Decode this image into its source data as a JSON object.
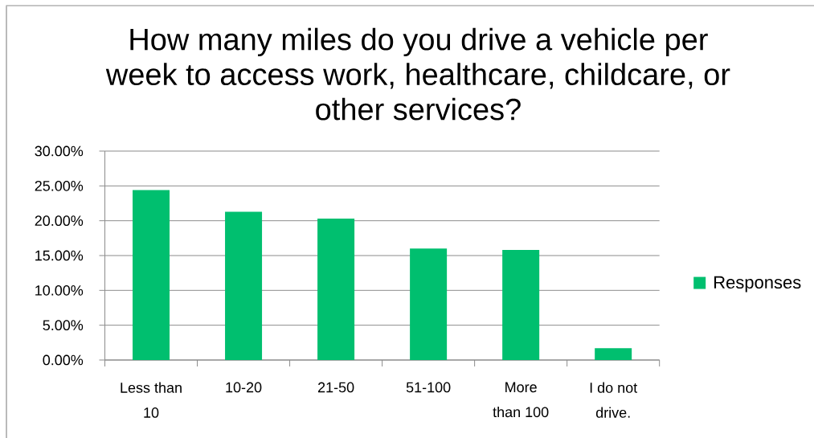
{
  "chart_data": {
    "type": "bar",
    "title": "How many miles do you drive a vehicle per week to access work, healthcare, childcare, or other services?",
    "categories": [
      "Less than 10",
      "10-20",
      "21-50",
      "51-100",
      "More than 100",
      "I do not drive."
    ],
    "series": [
      {
        "name": "Responses",
        "color": "#00bf6f",
        "values": [
          24.4,
          21.3,
          20.3,
          16.0,
          15.8,
          1.7
        ]
      }
    ],
    "ylim": [
      0,
      30
    ],
    "yticks": [
      {
        "value": 0,
        "label": "0.00%"
      },
      {
        "value": 5,
        "label": "5.00%"
      },
      {
        "value": 10,
        "label": "10.00%"
      },
      {
        "value": 15,
        "label": "15.00%"
      },
      {
        "value": 20,
        "label": "20.00%"
      },
      {
        "value": 25,
        "label": "25.00%"
      },
      {
        "value": 30,
        "label": "30.00%"
      }
    ],
    "grid": "y",
    "legend": "right"
  }
}
